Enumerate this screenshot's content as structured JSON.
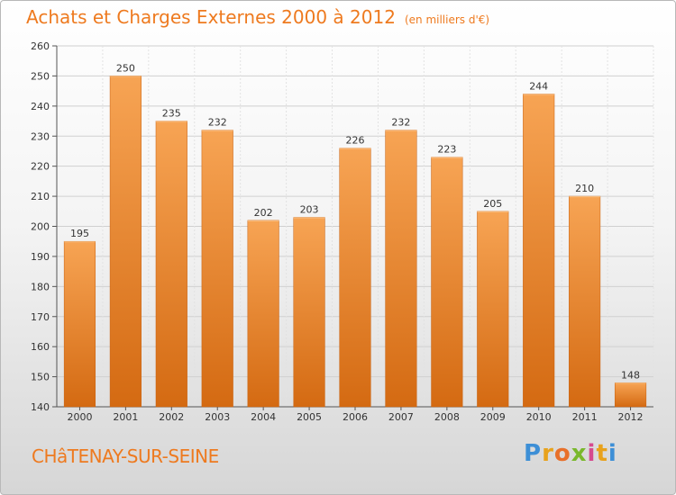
{
  "chart_data": {
    "type": "bar",
    "title": "Achats et Charges Externes 2000 à 2012",
    "subtitle": "(en milliers d'€)",
    "categories": [
      "2000",
      "2001",
      "2002",
      "2003",
      "2004",
      "2005",
      "2006",
      "2007",
      "2008",
      "2009",
      "2010",
      "2011",
      "2012"
    ],
    "values": [
      195,
      250,
      235,
      232,
      202,
      203,
      226,
      232,
      223,
      205,
      244,
      210,
      148
    ],
    "ylim": [
      140,
      260
    ],
    "yticks": [
      140,
      150,
      160,
      170,
      180,
      190,
      200,
      210,
      220,
      230,
      240,
      250,
      260
    ],
    "grid": true,
    "bar_color": "#f0903a"
  },
  "footer": {
    "town": "CHâTENAY-SUR-SEINE"
  },
  "logo": {
    "letters": [
      "P",
      "r",
      "o",
      "x",
      "i",
      "t",
      "i"
    ],
    "colors": [
      "#3d8fd6",
      "#e8a21c",
      "#e8702a",
      "#79b82c",
      "#d64a8e",
      "#e8a21c",
      "#3d8fd6"
    ]
  }
}
